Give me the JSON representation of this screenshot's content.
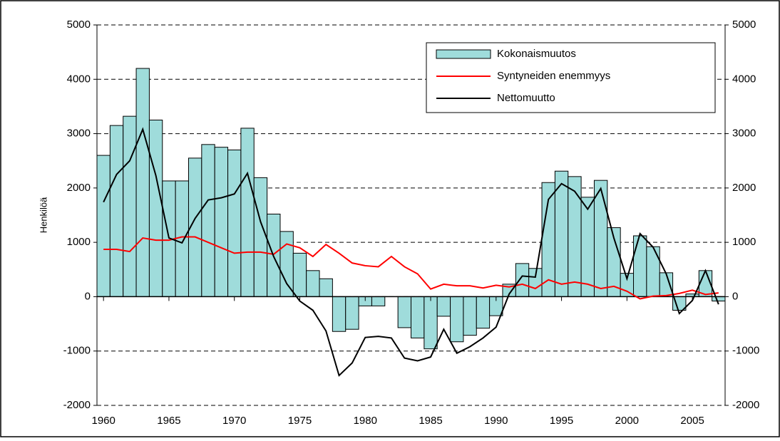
{
  "chart_data": {
    "type": "bar-line",
    "y_label": "Henkilöä",
    "x": [
      1960,
      1961,
      1962,
      1963,
      1964,
      1965,
      1966,
      1967,
      1968,
      1969,
      1970,
      1971,
      1972,
      1973,
      1974,
      1975,
      1976,
      1977,
      1978,
      1979,
      1980,
      1981,
      1982,
      1983,
      1984,
      1985,
      1986,
      1987,
      1988,
      1989,
      1990,
      1991,
      1992,
      1993,
      1994,
      1995,
      1996,
      1997,
      1998,
      1999,
      2000,
      2001,
      2002,
      2003,
      2004,
      2005,
      2006,
      2007
    ],
    "xlim": [
      1959.5,
      2007.5
    ],
    "xticks": [
      1960,
      1965,
      1970,
      1975,
      1980,
      1985,
      1990,
      1995,
      2000,
      2005
    ],
    "ylim": [
      -2000,
      5000
    ],
    "yticks": [
      -2000,
      -1000,
      0,
      1000,
      2000,
      3000,
      4000,
      5000
    ],
    "y2lim": [
      -2000,
      5000
    ],
    "y2ticks": [
      -2000,
      -1000,
      0,
      1000,
      2000,
      3000,
      4000,
      5000
    ],
    "grid": true,
    "legend": "top-right",
    "series": [
      {
        "name": "Kokonaismuutos",
        "type": "bar",
        "color": "#9fdcdb",
        "values": [
          2600,
          3150,
          3320,
          4200,
          3250,
          2130,
          2130,
          2550,
          2800,
          2750,
          2700,
          3100,
          2190,
          1520,
          1200,
          800,
          480,
          330,
          -640,
          -600,
          -170,
          -170,
          0,
          -570,
          -760,
          -960,
          -360,
          -830,
          -710,
          -580,
          -350,
          230,
          610,
          520,
          2100,
          2310,
          2210,
          1830,
          2140,
          1270,
          430,
          1120,
          920,
          440,
          -250,
          50,
          480,
          -80
        ]
      },
      {
        "name": "Syntyneiden enemmyys",
        "type": "line",
        "color": "#ff0000",
        "values": [
          870,
          870,
          830,
          1080,
          1040,
          1040,
          1100,
          1100,
          1000,
          900,
          800,
          820,
          820,
          780,
          970,
          900,
          740,
          960,
          800,
          620,
          570,
          550,
          740,
          550,
          420,
          140,
          230,
          200,
          200,
          160,
          210,
          180,
          230,
          150,
          310,
          230,
          270,
          230,
          150,
          190,
          100,
          -40,
          10,
          20,
          60,
          120,
          40,
          70
        ]
      },
      {
        "name": "Nettomuutto",
        "type": "line",
        "color": "#000000",
        "values": [
          1740,
          2250,
          2500,
          3080,
          2230,
          1080,
          990,
          1440,
          1780,
          1820,
          1890,
          2270,
          1380,
          740,
          240,
          -80,
          -250,
          -630,
          -1450,
          -1220,
          -750,
          -730,
          -760,
          -1130,
          -1180,
          -1110,
          -600,
          -1040,
          -920,
          -760,
          -560,
          50,
          380,
          360,
          1790,
          2080,
          1940,
          1610,
          1990,
          1080,
          330,
          1160,
          910,
          420,
          -310,
          -70,
          480,
          -140
        ]
      }
    ]
  }
}
